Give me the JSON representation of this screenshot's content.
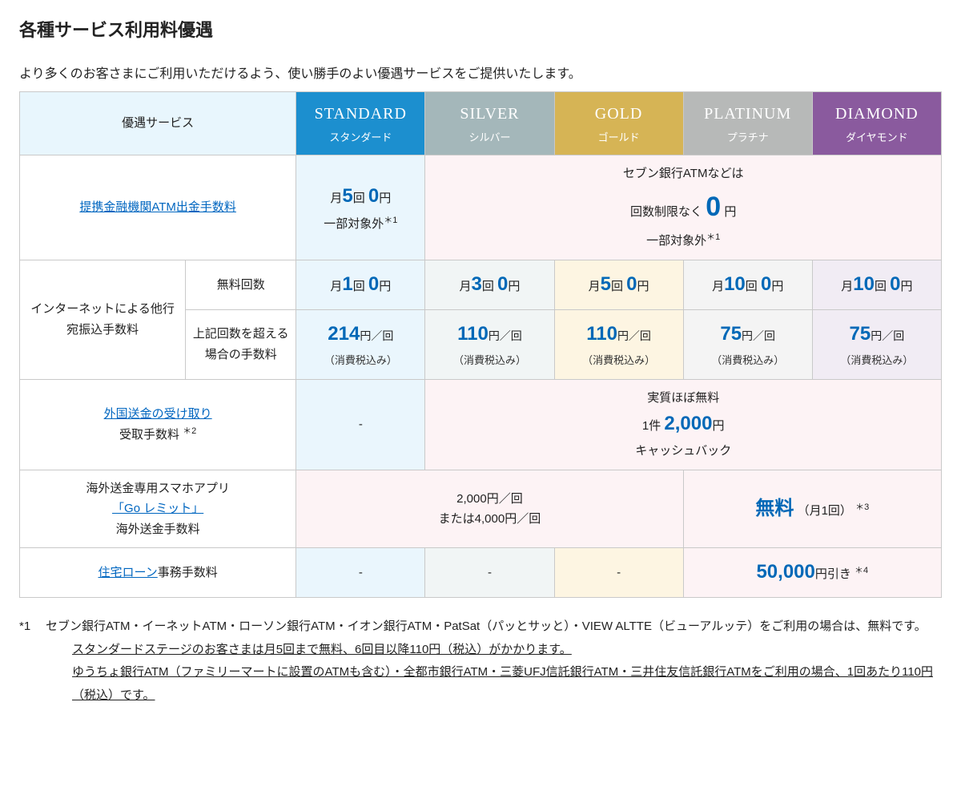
{
  "title": "各種サービス利用料優遇",
  "lead": "より多くのお客さまにご利用いただけるよう、使い勝手のよい優遇サービスをご提供いたします。",
  "headers": {
    "service": "優遇サービス",
    "tiers": [
      {
        "en": "STANDARD",
        "ja": "スタンダード",
        "cls": "tier-standard"
      },
      {
        "en": "SILVER",
        "ja": "シルバー",
        "cls": "tier-silver"
      },
      {
        "en": "GOLD",
        "ja": "ゴールド",
        "cls": "tier-gold"
      },
      {
        "en": "PLATINUM",
        "ja": "プラチナ",
        "cls": "tier-platinum"
      },
      {
        "en": "DIAMOND",
        "ja": "ダイヤモンド",
        "cls": "tier-diamond"
      }
    ]
  },
  "rows": {
    "atm": {
      "label": "提携金融機関ATM出金手数料",
      "standard": {
        "pre": "月",
        "n": "5",
        "mid": "回",
        "amt": "0",
        "unit": "円",
        "note": "一部対象外",
        "sup": "＊1"
      },
      "others": {
        "line1": "セブン銀行ATMなどは",
        "pre": "回数制限なく",
        "amt": "0",
        "unit": "円",
        "note": "一部対象外",
        "sup": "＊1"
      }
    },
    "transfer": {
      "group": "インターネットによる他行宛振込手数料",
      "free_label": "無料回数",
      "free": [
        {
          "cls": "c-standard",
          "pre": "月",
          "n": "1",
          "mid": "回",
          "amt": "0",
          "unit": "円"
        },
        {
          "cls": "c-silver",
          "pre": "月",
          "n": "3",
          "mid": "回",
          "amt": "0",
          "unit": "円"
        },
        {
          "cls": "c-gold",
          "pre": "月",
          "n": "5",
          "mid": "回",
          "amt": "0",
          "unit": "円"
        },
        {
          "cls": "c-platinum",
          "pre": "月",
          "n": "10",
          "mid": "回",
          "amt": "0",
          "unit": "円"
        },
        {
          "cls": "c-diamond",
          "pre": "月",
          "n": "10",
          "mid": "回",
          "amt": "0",
          "unit": "円"
        }
      ],
      "over_label": "上記回数を超える場合の手数料",
      "over": [
        {
          "cls": "c-standard",
          "amt": "214",
          "unit": "円／回",
          "note": "（消費税込み）"
        },
        {
          "cls": "c-silver",
          "amt": "110",
          "unit": "円／回",
          "note": "（消費税込み）"
        },
        {
          "cls": "c-gold",
          "amt": "110",
          "unit": "円／回",
          "note": "（消費税込み）"
        },
        {
          "cls": "c-platinum",
          "amt": "75",
          "unit": "円／回",
          "note": "（消費税込み）"
        },
        {
          "cls": "c-diamond",
          "amt": "75",
          "unit": "円／回",
          "note": "（消費税込み）"
        }
      ]
    },
    "fx_in": {
      "link": "外国送金の受け取り",
      "sub": "受取手数料",
      "sup": "＊2",
      "standard": "-",
      "others": {
        "line1": "実質ほぼ無料",
        "pre": "1件",
        "amt": "2,000",
        "unit": "円",
        "line3": "キャッシュバック"
      }
    },
    "goremit": {
      "l1": "海外送金専用スマホアプリ",
      "link": "「Go レミット」",
      "l3": "海外送金手数料",
      "left": {
        "line1": "2,000円／回",
        "line2": "または4,000円／回"
      },
      "right": {
        "main": "無料",
        "note": "（月1回）",
        "sup": "＊3"
      }
    },
    "loan": {
      "link": "住宅ローン",
      "after": "事務手数料",
      "standard": "-",
      "silver": "-",
      "gold": "-",
      "right": {
        "amt": "50,000",
        "unit": "円引き",
        "sup": "＊4"
      }
    }
  },
  "footnotes": {
    "n1_marker": "*1",
    "n1_a": "セブン銀行ATM・イーネットATM・ローソン銀行ATM・イオン銀行ATM・PatSat（パッとサッと）・VIEW ALTTE（ビューアルッテ）をご利用の場合は、無料です。",
    "n1_b": "スタンダードステージのお客さまは月5回まで無料、6回目以降110円（税込）がかかります。",
    "n1_c": "ゆうちょ銀行ATM（ファミリーマートに設置のATMも含む）・全都市銀行ATM・三菱UFJ信託銀行ATM・三井住友信託銀行ATMをご利用の場合、1回あたり110円（税込）です。"
  }
}
